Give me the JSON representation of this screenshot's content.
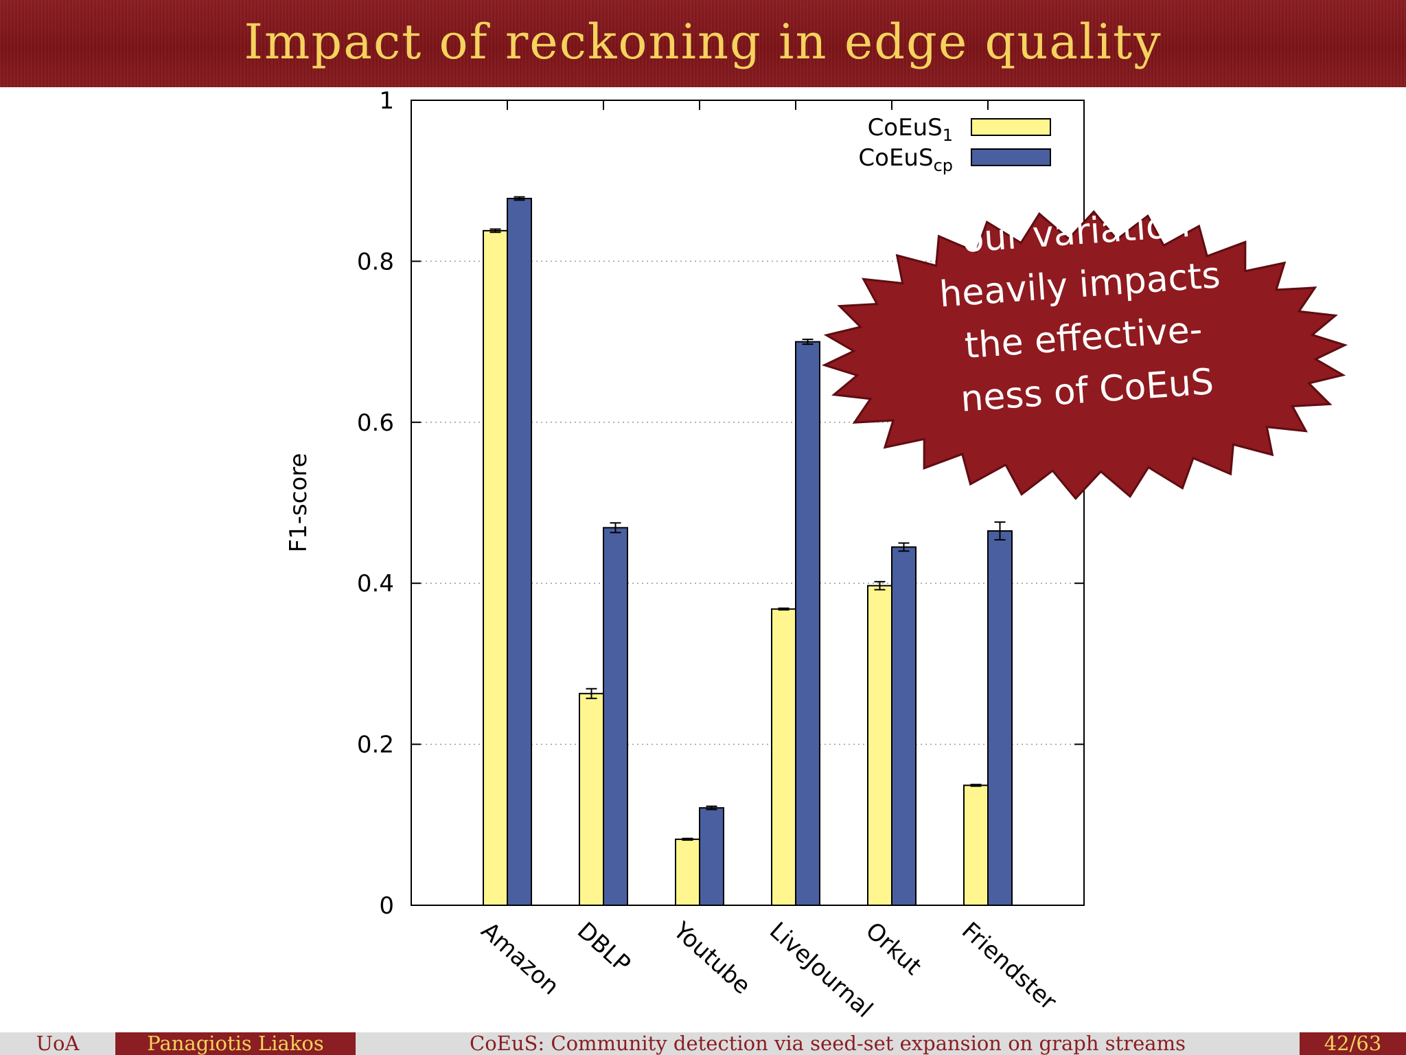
{
  "slide": {
    "title": "Impact of reckoning in edge quality",
    "callout": [
      "our variation",
      "heavily impacts",
      "the effective-",
      "ness of CoEuS"
    ],
    "colors": {
      "header": "#8a1e22",
      "title": "#f4d35e",
      "callout_fill": "#8f1a1f",
      "callout_text": "#ffffff"
    }
  },
  "footer": {
    "institution": "UoA",
    "author": "Panagiotis Liakos",
    "talk_title": "CoEuS: Community detection via seed-set expansion on graph streams",
    "page": "42/63"
  },
  "chart_data": {
    "type": "bar",
    "title": "",
    "xlabel": "",
    "ylabel": "F1-score",
    "ylim": [
      0,
      1
    ],
    "yticks": [
      "0",
      "0.2",
      "0.4",
      "0.6",
      "0.8",
      "1"
    ],
    "grid": "horizontal dotted",
    "legend_position": "top-right",
    "categories": [
      "Amazon",
      "DBLP",
      "Youtube",
      "LiveJournal",
      "Orkut",
      "Friendster"
    ],
    "series": [
      {
        "name": "CoEuS",
        "subscript": "1",
        "color": "#fff68f",
        "values": [
          0.838,
          0.263,
          0.082,
          0.368,
          0.397,
          0.149
        ],
        "errors": [
          0.002,
          0.006,
          0.001,
          0.001,
          0.005,
          0.001
        ]
      },
      {
        "name": "CoEuS",
        "subscript": "cp",
        "color": "#4a5fa0",
        "values": [
          0.878,
          0.469,
          0.121,
          0.7,
          0.445,
          0.465
        ],
        "errors": [
          0.002,
          0.006,
          0.002,
          0.003,
          0.005,
          0.011
        ]
      }
    ]
  }
}
